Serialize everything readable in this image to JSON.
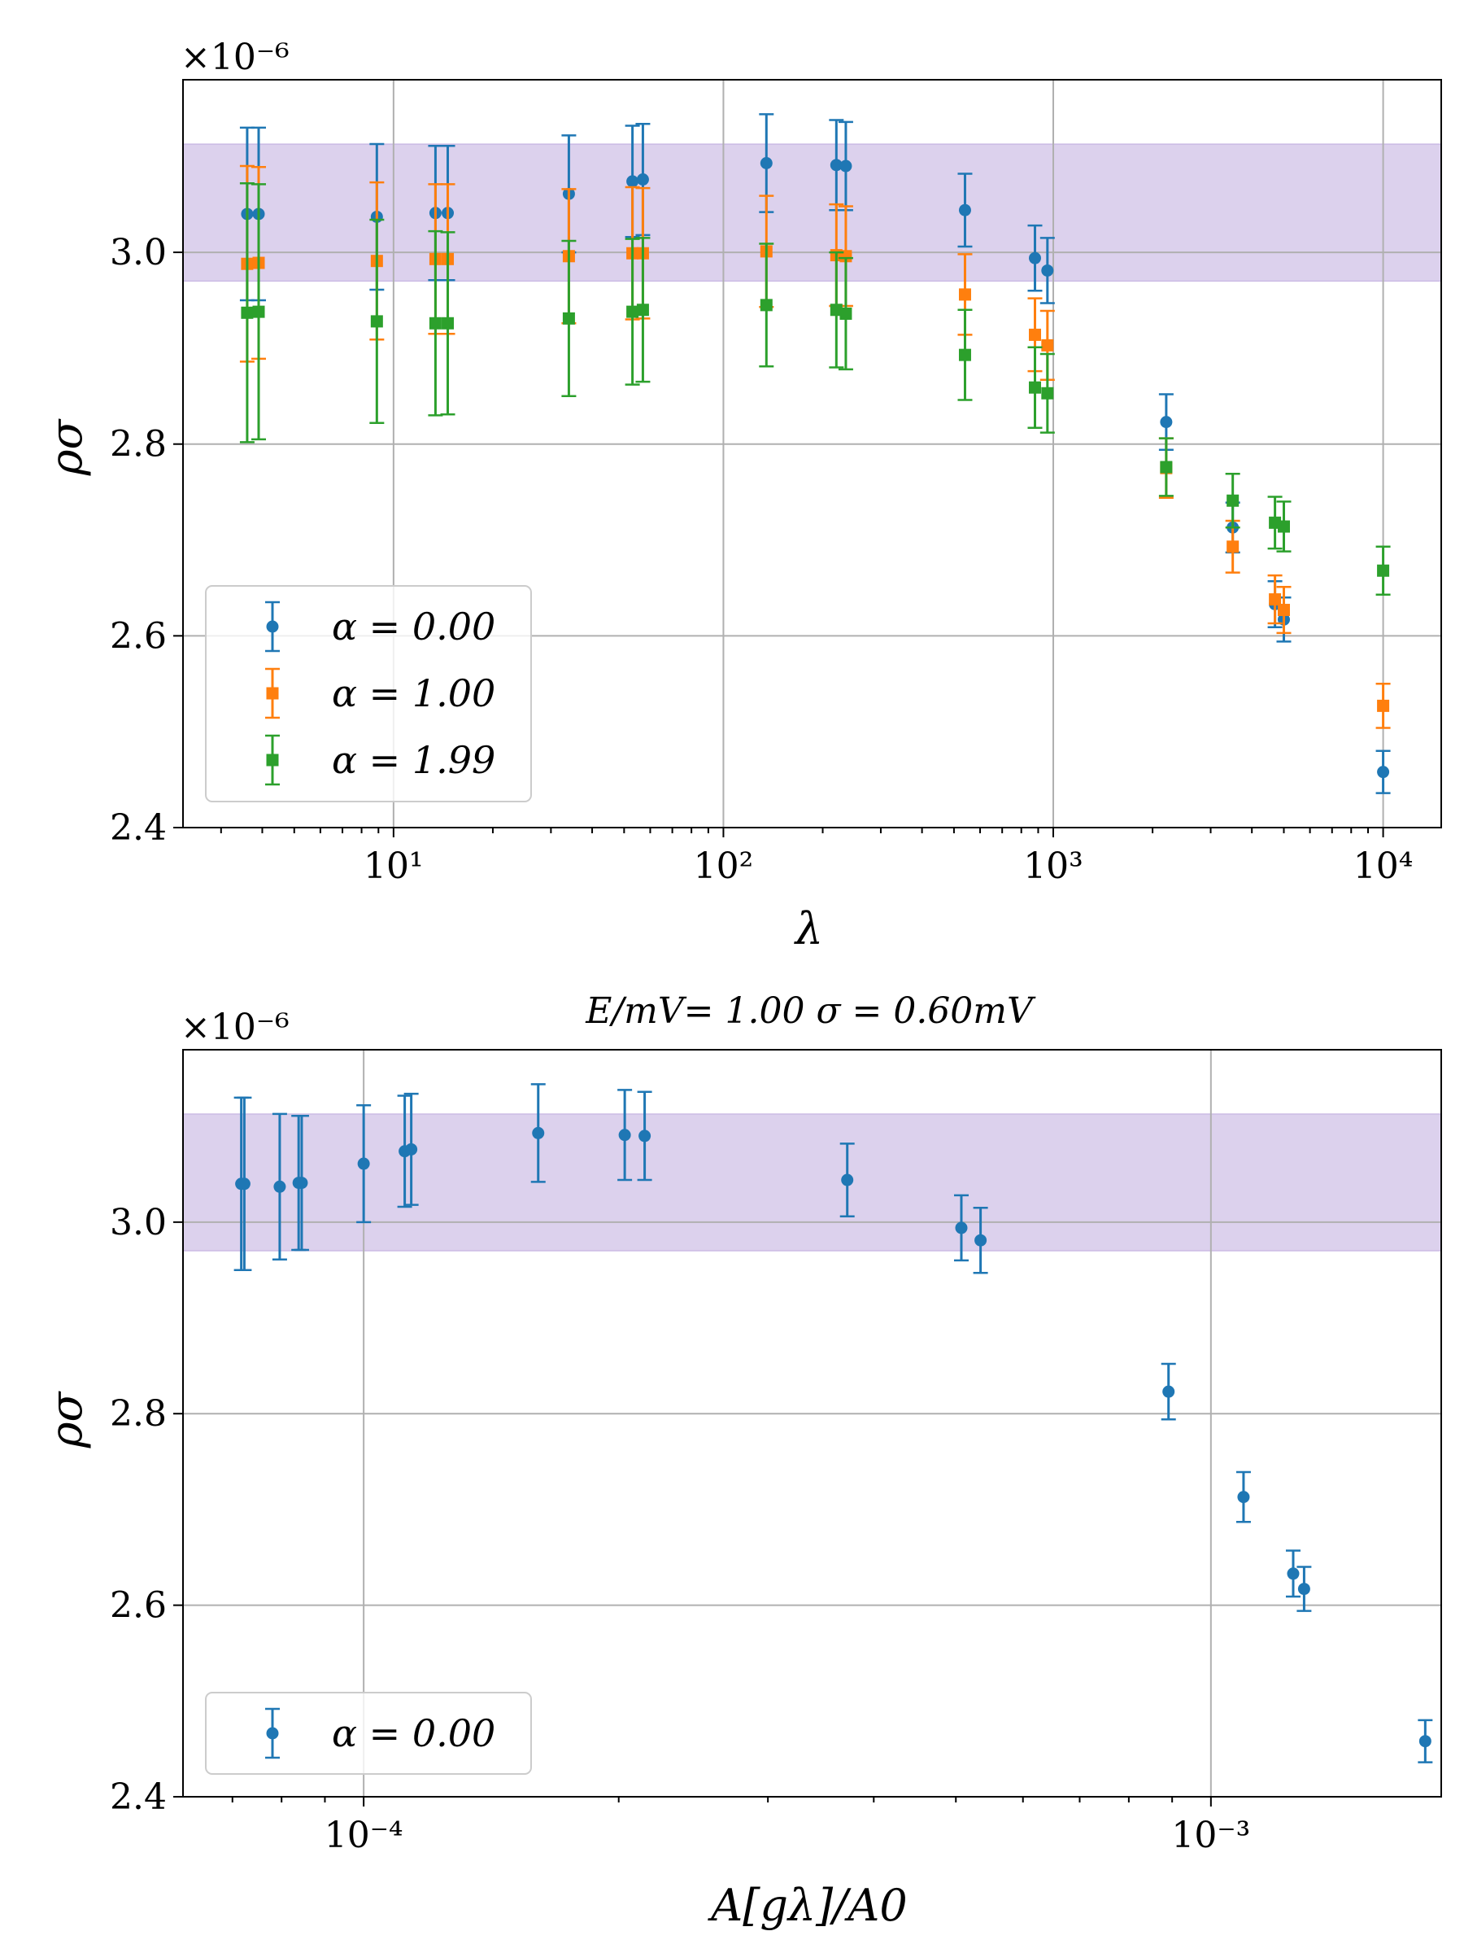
{
  "chart_data": [
    {
      "type": "scatter",
      "title": "",
      "xlabel": "λ",
      "ylabel": "ρσ",
      "x_scale": "log",
      "xlim": [
        2.3,
        15000
      ],
      "ylim": [
        2.4,
        3.18
      ],
      "multiplier_label": "×10⁻⁶",
      "x_tick_labels": [
        "10¹",
        "10²",
        "10³",
        "10⁴"
      ],
      "x_ticks": [
        10,
        100,
        1000,
        10000
      ],
      "y_ticks": [
        2.4,
        2.6,
        2.8,
        3.0
      ],
      "y_tick_labels": [
        "2.4",
        "2.6",
        "2.8",
        "3.0"
      ],
      "grid": true,
      "legend_position": "lower-left",
      "band": {
        "low": 2.97,
        "high": 3.113,
        "color": "#9a7ccc"
      },
      "series": [
        {
          "name": "α = 0.00",
          "marker": "circle",
          "color": "#1f77b4",
          "x": [
            3.6,
            3.9,
            8.9,
            13.4,
            14.6,
            34,
            53,
            57,
            135,
            220,
            235,
            540,
            880,
            960,
            2200,
            3500,
            4700,
            5000,
            10000
          ],
          "y": [
            3.04,
            3.04,
            3.037,
            3.041,
            3.041,
            3.061,
            3.074,
            3.076,
            3.093,
            3.091,
            3.09,
            3.044,
            2.994,
            2.981,
            2.823,
            2.713,
            2.633,
            2.617,
            2.458
          ],
          "err": [
            0.09,
            0.09,
            0.076,
            0.07,
            0.07,
            0.061,
            0.058,
            0.058,
            0.051,
            0.047,
            0.046,
            0.038,
            0.034,
            0.034,
            0.029,
            0.026,
            0.024,
            0.023,
            0.022
          ]
        },
        {
          "name": "α = 1.00",
          "marker": "square",
          "color": "#ff7f0e",
          "x": [
            3.6,
            3.9,
            8.9,
            13.4,
            14.6,
            34,
            53,
            57,
            135,
            220,
            235,
            540,
            880,
            960,
            2200,
            3500,
            4700,
            5000,
            10000
          ],
          "y": [
            2.988,
            2.989,
            2.991,
            2.993,
            2.993,
            2.996,
            2.999,
            2.999,
            3.001,
            2.997,
            2.996,
            2.956,
            2.914,
            2.903,
            2.775,
            2.693,
            2.638,
            2.627,
            2.527
          ],
          "err": [
            0.102,
            0.1,
            0.082,
            0.078,
            0.078,
            0.07,
            0.069,
            0.068,
            0.058,
            0.053,
            0.052,
            0.042,
            0.038,
            0.036,
            0.031,
            0.027,
            0.025,
            0.024,
            0.023
          ]
        },
        {
          "name": "α = 1.99",
          "marker": "square",
          "color": "#2ca02c",
          "x": [
            3.6,
            3.9,
            8.9,
            13.4,
            14.6,
            34,
            53,
            57,
            135,
            220,
            235,
            540,
            880,
            960,
            2200,
            3500,
            4700,
            5000,
            10000
          ],
          "y": [
            2.937,
            2.938,
            2.928,
            2.926,
            2.926,
            2.931,
            2.938,
            2.94,
            2.945,
            2.94,
            2.936,
            2.893,
            2.859,
            2.853,
            2.776,
            2.741,
            2.718,
            2.714,
            2.668
          ],
          "err": [
            0.135,
            0.133,
            0.106,
            0.096,
            0.095,
            0.081,
            0.076,
            0.075,
            0.064,
            0.06,
            0.058,
            0.047,
            0.042,
            0.041,
            0.03,
            0.028,
            0.027,
            0.026,
            0.025
          ]
        }
      ]
    },
    {
      "type": "scatter",
      "title": "E/mV= 1.00 σ = 0.60mV",
      "xlabel": "A[gλ]/A0",
      "ylabel": "ρσ",
      "x_scale": "log",
      "xlim": [
        6.12e-05,
        0.00187
      ],
      "ylim": [
        2.4,
        3.18
      ],
      "multiplier_label": "×10⁻⁶",
      "x_tick_labels": [
        "10⁻⁴",
        "10⁻³"
      ],
      "x_ticks": [
        0.0001,
        0.001
      ],
      "y_ticks": [
        2.4,
        2.6,
        2.8,
        3.0
      ],
      "y_tick_labels": [
        "2.4",
        "2.6",
        "2.8",
        "3.0"
      ],
      "grid": true,
      "legend_position": "lower-left",
      "band": {
        "low": 2.97,
        "high": 3.113,
        "color": "#9a7ccc"
      },
      "series": [
        {
          "name": "α = 0.00",
          "marker": "circle",
          "color": "#1f77b4",
          "x": [
            7.17e-05,
            7.23e-05,
            7.96e-05,
            8.38e-05,
            8.45e-05,
            0.0001,
            0.0001118,
            0.0001138,
            0.0001607,
            0.0002033,
            0.0002146,
            0.0003722,
            0.0005075,
            0.0005347,
            0.0008912,
            0.0010927,
            0.0012506,
            0.0012882,
            0.0017905
          ],
          "y": [
            3.04,
            3.04,
            3.037,
            3.041,
            3.041,
            3.061,
            3.074,
            3.076,
            3.093,
            3.091,
            3.09,
            3.044,
            2.994,
            2.981,
            2.823,
            2.713,
            2.633,
            2.617,
            2.458
          ],
          "err": [
            0.09,
            0.09,
            0.076,
            0.07,
            0.07,
            0.061,
            0.058,
            0.058,
            0.051,
            0.047,
            0.046,
            0.038,
            0.034,
            0.034,
            0.029,
            0.026,
            0.024,
            0.023,
            0.022
          ]
        }
      ]
    }
  ]
}
